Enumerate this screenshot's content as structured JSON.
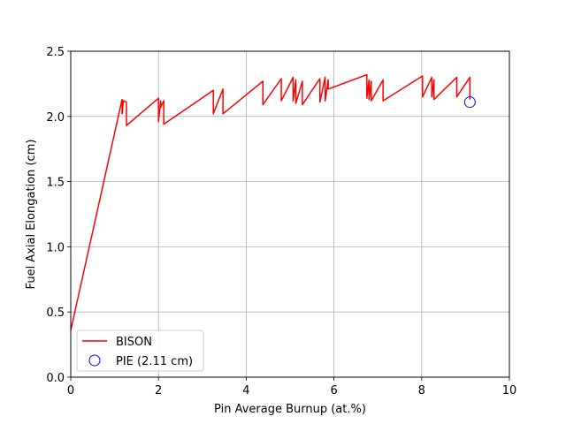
{
  "chart_data": {
    "type": "line",
    "title": "",
    "xlabel": "Pin Average Burnup (at.%)",
    "ylabel": "Fuel Axial Elongation (cm)",
    "xlim": [
      0,
      10
    ],
    "ylim": [
      0,
      2.5
    ],
    "xticks": [
      0,
      2,
      4,
      6,
      8,
      10
    ],
    "xtick_labels": [
      "0",
      "2",
      "4",
      "6",
      "8",
      "10"
    ],
    "yticks": [
      0.0,
      0.5,
      1.0,
      1.5,
      2.0,
      2.5
    ],
    "ytick_labels": [
      "0.0",
      "0.5",
      "1.0",
      "1.5",
      "2.0",
      "2.5"
    ],
    "grid": true,
    "legend_position": "lower-left",
    "series": [
      {
        "name": "BISON",
        "style": "line",
        "color": "#ff0000",
        "x": [
          0,
          1.17,
          1.17,
          1.2,
          1.2,
          1.27,
          1.27,
          2.0,
          2.0,
          2.05,
          2.05,
          2.12,
          2.12,
          3.25,
          3.25,
          3.47,
          3.47,
          4.38,
          4.38,
          4.8,
          4.8,
          5.07,
          5.07,
          5.13,
          5.13,
          5.28,
          5.28,
          5.68,
          5.68,
          5.8,
          5.8,
          5.87,
          5.87,
          6.75,
          6.75,
          6.8,
          6.8,
          6.85,
          6.85,
          7.12,
          7.12,
          8.02,
          8.02,
          8.23,
          8.23,
          8.28,
          8.28,
          8.8,
          8.8,
          9.1,
          9.1
        ],
        "y": [
          0.36,
          2.13,
          2.02,
          2.12,
          2.12,
          2.11,
          1.93,
          2.14,
          1.96,
          2.12,
          2.07,
          2.12,
          1.94,
          2.2,
          2.02,
          2.21,
          2.02,
          2.27,
          2.09,
          2.29,
          2.12,
          2.3,
          2.12,
          2.28,
          2.1,
          2.27,
          2.09,
          2.29,
          2.11,
          2.3,
          2.12,
          2.28,
          2.21,
          2.32,
          2.14,
          2.28,
          2.13,
          2.27,
          2.12,
          2.28,
          2.12,
          2.31,
          2.15,
          2.3,
          2.15,
          2.28,
          2.13,
          2.3,
          2.15,
          2.3,
          2.13
        ]
      },
      {
        "name": "PIE (2.11 cm)",
        "style": "marker",
        "marker": "open-circle",
        "color": "#0000ff",
        "x": [
          9.1
        ],
        "y": [
          2.11
        ]
      }
    ]
  },
  "colors": {
    "bison": "#ff0000",
    "pie": "#0000ff",
    "grid": "#b0b0b0",
    "axes": "#000000"
  }
}
